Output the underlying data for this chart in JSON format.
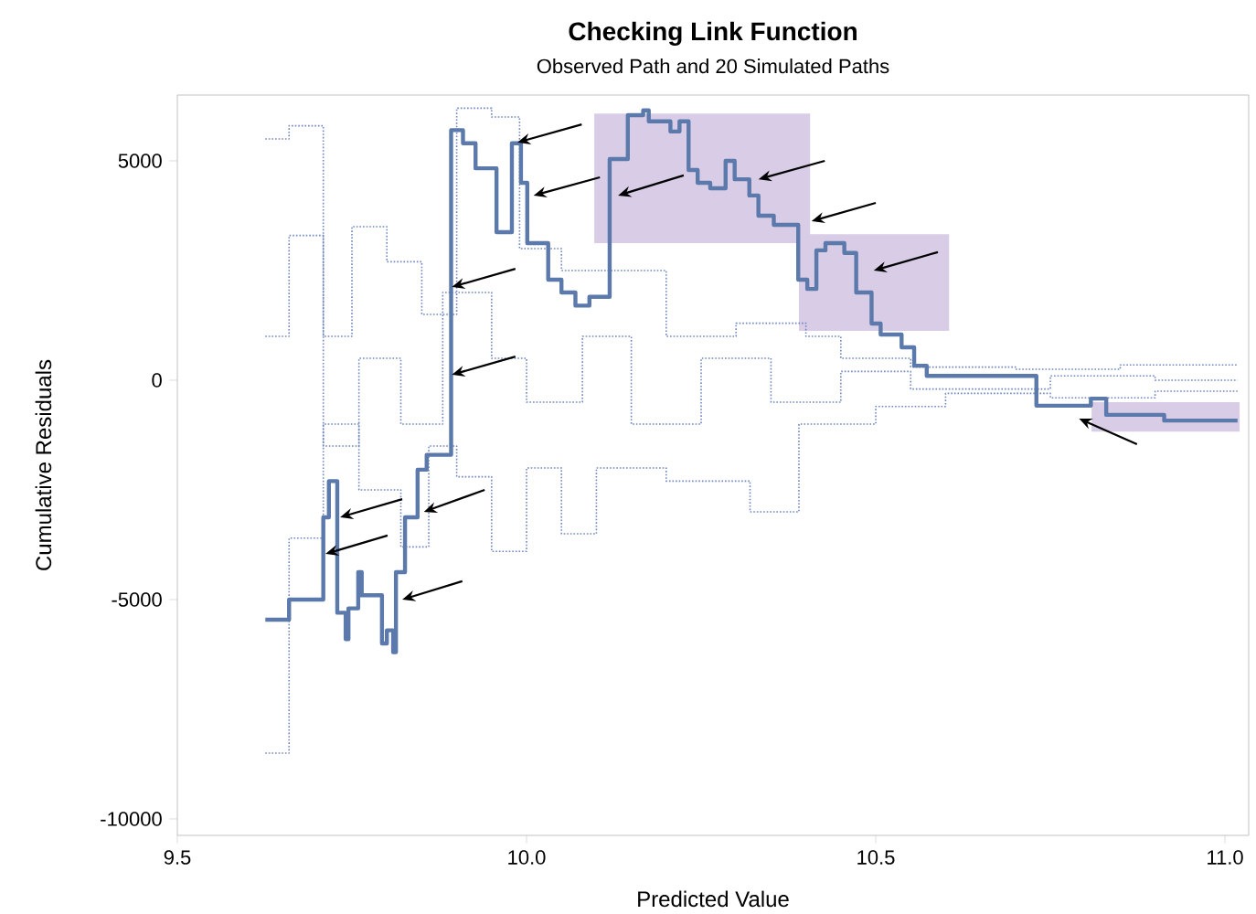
{
  "chart_data": {
    "type": "step",
    "title": "Checking Link Function",
    "subtitle": "Observed Path and 20 Simulated Paths",
    "xlabel": "Predicted Value",
    "ylabel": "Cumulative Residuals",
    "xlim": [
      9.5,
      11.034
    ],
    "ylim": [
      -10375,
      6500
    ],
    "xticks": [
      {
        "value": 9.5,
        "label": "9.5"
      },
      {
        "value": 10.0,
        "label": "10.0"
      },
      {
        "value": 10.5,
        "label": "10.5"
      },
      {
        "value": 11.0,
        "label": "11.0"
      }
    ],
    "yticks": [
      -10000,
      -5000,
      0,
      5000
    ],
    "grid": false,
    "marker": "none",
    "series": [
      {
        "color": "#6f86c0",
        "line_style": "dotted",
        "x": [
          9.626,
          9.66,
          9.709,
          9.75,
          9.8,
          9.85,
          9.9,
          9.95,
          9.99,
          10.05,
          10.12,
          10.2,
          10.3,
          10.4,
          10.45,
          10.55,
          10.7,
          10.85,
          11.018
        ],
        "values": [
          5500,
          5800,
          1000,
          3500,
          2700,
          1500,
          6200,
          6000,
          3000,
          2500,
          2500,
          1000,
          1300,
          1000,
          500,
          300,
          250,
          350,
          350
        ]
      },
      {
        "color": "#6f86c0",
        "line_style": "dotted",
        "x": [
          9.626,
          9.66,
          9.709,
          9.76,
          9.82,
          9.86,
          9.9,
          9.95,
          10.0,
          10.05,
          10.1,
          10.2,
          10.32,
          10.39,
          10.5,
          10.6,
          10.75,
          10.9,
          11.018
        ],
        "values": [
          -8500,
          -3600,
          -1000,
          -2500,
          -3800,
          -1500,
          -2200,
          -3900,
          -2000,
          -3500,
          -2000,
          -2300,
          -3000,
          -1000,
          -600,
          -300,
          -400,
          -250,
          -250
        ]
      },
      {
        "color": "#6f86c0",
        "line_style": "dotted",
        "x": [
          9.626,
          9.66,
          9.709,
          9.76,
          9.82,
          9.88,
          9.95,
          10.0,
          10.08,
          10.15,
          10.25,
          10.35,
          10.45,
          10.55,
          10.75,
          10.9,
          11.018
        ],
        "values": [
          1000,
          3300,
          -1500,
          500,
          -1000,
          2000,
          500,
          -500,
          1000,
          -1000,
          500,
          -500,
          200,
          -200,
          100,
          0,
          0
        ]
      },
      {
        "color": "#5b79ab",
        "line_style": "solid",
        "x": [
          9.626,
          9.66,
          9.709,
          9.717,
          9.729,
          9.741,
          9.745,
          9.759,
          9.764,
          9.793,
          9.8,
          9.809,
          9.813,
          9.826,
          9.844,
          9.857,
          9.892,
          9.909,
          9.927,
          9.957,
          9.979,
          9.992,
          10.001,
          10.031,
          10.05,
          10.07,
          10.09,
          10.119,
          10.145,
          10.167,
          10.175,
          10.206,
          10.219,
          10.232,
          10.245,
          10.263,
          10.285,
          10.298,
          10.319,
          10.332,
          10.354,
          10.389,
          10.402,
          10.415,
          10.428,
          10.455,
          10.472,
          10.494,
          10.507,
          10.537,
          10.555,
          10.573,
          10.73,
          10.808,
          10.83,
          10.913,
          11.018
        ],
        "values": [
          -5460,
          -5000,
          -3125,
          -2300,
          -5300,
          -5900,
          -5200,
          -4375,
          -4900,
          -6000,
          -5700,
          -6200,
          -4375,
          -3125,
          -2040,
          -1700,
          5700,
          5400,
          4830,
          3375,
          5400,
          4500,
          3125,
          2290,
          2000,
          1700,
          1900,
          5040,
          6040,
          6150,
          5900,
          5670,
          5900,
          4790,
          4500,
          4375,
          5000,
          4580,
          4210,
          3750,
          3540,
          2290,
          2080,
          2960,
          3125,
          2900,
          2000,
          1290,
          1040,
          750,
          330,
          100,
          -580,
          -420,
          -790,
          -920,
          -920
        ]
      }
    ]
  }
}
